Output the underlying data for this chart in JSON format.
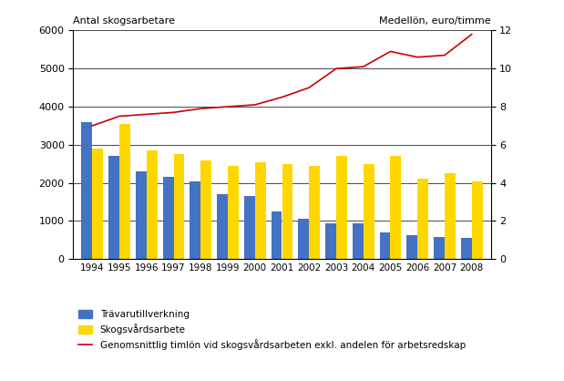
{
  "years": [
    1994,
    1995,
    1996,
    1997,
    1998,
    1999,
    2000,
    2001,
    2002,
    2003,
    2004,
    2005,
    2006,
    2007,
    2008
  ],
  "travarutillverkning": [
    3600,
    2700,
    2300,
    2150,
    2050,
    1700,
    1650,
    1250,
    1050,
    950,
    950,
    700,
    620,
    570,
    550
  ],
  "skogsvardsarbete": [
    2900,
    3550,
    2850,
    2750,
    2600,
    2450,
    2550,
    2500,
    2450,
    2700,
    2500,
    2700,
    2100,
    2250,
    2050
  ],
  "medelloen": [
    7.0,
    7.5,
    7.6,
    7.7,
    7.9,
    8.0,
    8.1,
    8.5,
    9.0,
    10.0,
    10.1,
    10.9,
    10.6,
    10.7,
    11.8
  ],
  "bar_color_blue": "#4472C4",
  "bar_color_yellow": "#FFD700",
  "line_color": "#CC0000",
  "left_ylabel": "Antal skogsarbetare",
  "right_ylabel": "Medellön, euro/timme",
  "left_ylim": [
    0,
    6000
  ],
  "right_ylim": [
    0,
    12
  ],
  "left_yticks": [
    0,
    1000,
    2000,
    3000,
    4000,
    5000,
    6000
  ],
  "right_yticks": [
    0,
    2,
    4,
    6,
    8,
    10,
    12
  ],
  "legend_travarutillverkning": "Trävarutillverkning",
  "legend_skogsvardsarbete": "Skogsvårdsarbete",
  "legend_line": "Genomsnittlig timlön vid skogsvårdsarbeten exkl. andelen för arbetsredskap",
  "background_color": "#ffffff",
  "grid_color": "#000000"
}
